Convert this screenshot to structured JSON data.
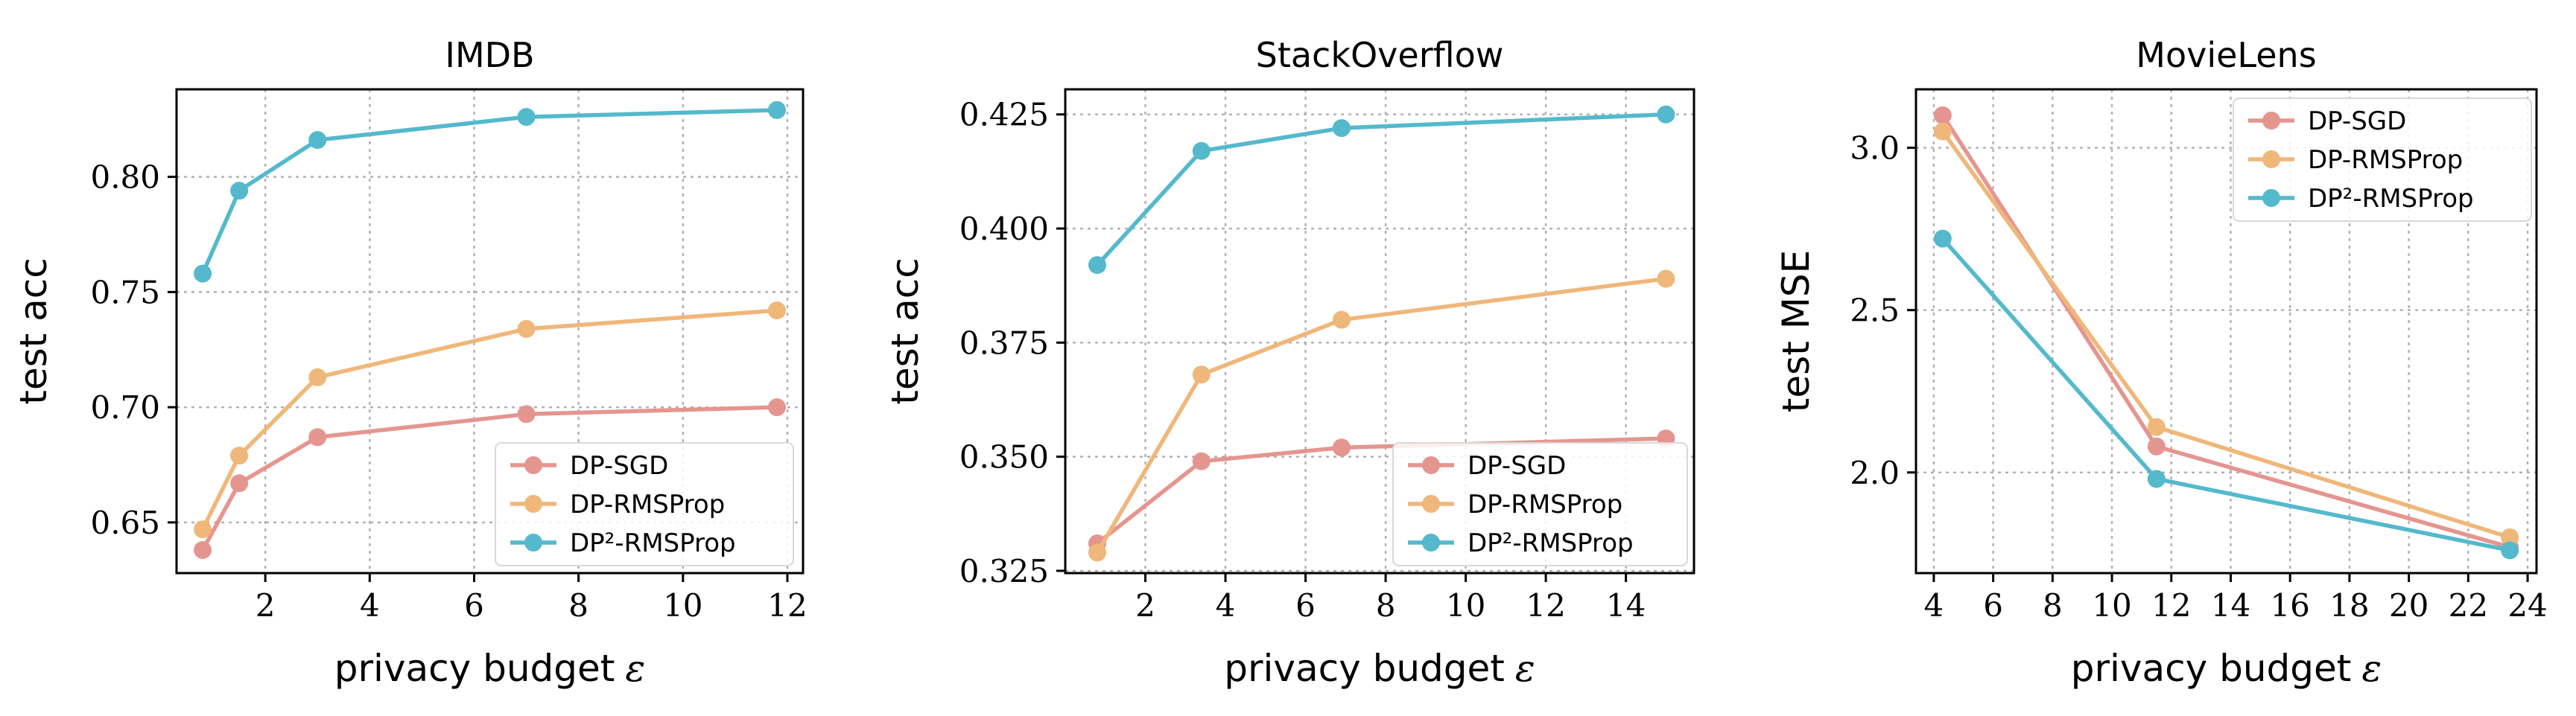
{
  "chart_data": [
    {
      "type": "line",
      "title": "IMDB",
      "xlabel": "privacy budget",
      "xlabel_symbol": "ε",
      "ylabel": "test acc",
      "xlim": [
        0.3,
        12.3
      ],
      "ylim": [
        0.628,
        0.838
      ],
      "xticks": [
        2,
        4,
        6,
        8,
        10,
        12
      ],
      "xtick_labels": [
        "2",
        "4",
        "6",
        "8",
        "10",
        "12"
      ],
      "yticks": [
        0.65,
        0.7,
        0.75,
        0.8
      ],
      "ytick_labels": [
        "0.65",
        "0.70",
        "0.75",
        "0.80"
      ],
      "grid": true,
      "legend_position": "lower-right",
      "series": [
        {
          "name": "DP-SGD",
          "color": "#e5958f",
          "x": [
            0.8,
            1.5,
            3.0,
            7.0,
            11.8
          ],
          "y": [
            0.638,
            0.667,
            0.687,
            0.697,
            0.7
          ]
        },
        {
          "name": "DP-RMSProp",
          "color": "#f0b77a",
          "x": [
            0.8,
            1.5,
            3.0,
            7.0,
            11.8
          ],
          "y": [
            0.647,
            0.679,
            0.713,
            0.734,
            0.742
          ]
        },
        {
          "name": "DP²-RMSProp",
          "color": "#54b9cc",
          "x": [
            0.8,
            1.5,
            3.0,
            7.0,
            11.8
          ],
          "y": [
            0.758,
            0.794,
            0.816,
            0.826,
            0.829
          ]
        }
      ]
    },
    {
      "type": "line",
      "title": "StackOverflow",
      "xlabel": "privacy budget",
      "xlabel_symbol": "ε",
      "ylabel": "test acc",
      "xlim": [
        0.0,
        15.7
      ],
      "ylim": [
        0.3245,
        0.4305
      ],
      "xticks": [
        2,
        4,
        6,
        8,
        10,
        12,
        14
      ],
      "xtick_labels": [
        "2",
        "4",
        "6",
        "8",
        "10",
        "12",
        "14"
      ],
      "yticks": [
        0.325,
        0.35,
        0.375,
        0.4,
        0.425
      ],
      "ytick_labels": [
        "0.325",
        "0.350",
        "0.375",
        "0.400",
        "0.425"
      ],
      "grid": true,
      "legend_position": "lower-right",
      "series": [
        {
          "name": "DP-SGD",
          "color": "#e5958f",
          "x": [
            0.8,
            3.4,
            6.9,
            15.0
          ],
          "y": [
            0.331,
            0.349,
            0.352,
            0.354
          ]
        },
        {
          "name": "DP-RMSProp",
          "color": "#f0b77a",
          "x": [
            0.8,
            3.4,
            6.9,
            15.0
          ],
          "y": [
            0.329,
            0.368,
            0.38,
            0.389
          ]
        },
        {
          "name": "DP²-RMSProp",
          "color": "#54b9cc",
          "x": [
            0.8,
            3.4,
            6.9,
            15.0
          ],
          "y": [
            0.392,
            0.417,
            0.422,
            0.425
          ]
        }
      ]
    },
    {
      "type": "line",
      "title": "MovieLens",
      "xlabel": "privacy budget",
      "xlabel_symbol": "ε",
      "ylabel": "test MSE",
      "xlim": [
        3.4,
        24.3
      ],
      "ylim": [
        1.69,
        3.18
      ],
      "xticks": [
        4,
        6,
        8,
        10,
        12,
        14,
        16,
        18,
        20,
        22,
        24
      ],
      "xtick_labels": [
        "4",
        "6",
        "8",
        "10",
        "12",
        "14",
        "16",
        "18",
        "20",
        "22",
        "24"
      ],
      "yticks": [
        2.0,
        2.5,
        3.0
      ],
      "ytick_labels": [
        "2.0",
        "2.5",
        "3.0"
      ],
      "grid": true,
      "legend_position": "upper-right",
      "series": [
        {
          "name": "DP-SGD",
          "color": "#e5958f",
          "x": [
            4.3,
            11.5,
            23.4
          ],
          "y": [
            3.1,
            2.08,
            1.77
          ]
        },
        {
          "name": "DP-RMSProp",
          "color": "#f0b77a",
          "x": [
            4.3,
            11.5,
            23.4
          ],
          "y": [
            3.05,
            2.14,
            1.8
          ]
        },
        {
          "name": "DP²-RMSProp",
          "color": "#54b9cc",
          "x": [
            4.3,
            11.5,
            23.4
          ],
          "y": [
            2.72,
            1.98,
            1.76
          ]
        }
      ]
    }
  ]
}
